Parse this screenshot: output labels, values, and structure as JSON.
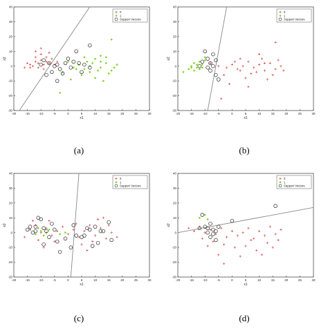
{
  "colors": {
    "class0": "#d9534f",
    "class1": "#7ed321",
    "sv": "#222222",
    "line": "#888888"
  },
  "chart_data": [
    {
      "type": "scatter",
      "caption": "(a)",
      "xlabel": "x1",
      "ylabel": "x2",
      "xlim": [
        -20,
        30
      ],
      "ylim": [
        -30,
        40
      ],
      "xticks": [
        -20,
        -15,
        -10,
        -5,
        0,
        5,
        10,
        15,
        20,
        25,
        30
      ],
      "yticks": [
        -30,
        -20,
        -10,
        0,
        10,
        20,
        30,
        40
      ],
      "legend": {
        "position": "top-right",
        "entries": [
          "0",
          "1",
          "Support Vectors"
        ]
      },
      "boundary": [
        [
          -18,
          -30
        ],
        [
          8,
          40
        ]
      ],
      "series": [
        {
          "name": "0",
          "marker": "plus",
          "points": [
            [
              -15,
              2
            ],
            [
              -14,
              1
            ],
            [
              -12,
              3
            ],
            [
              -11,
              2
            ],
            [
              -10,
              4
            ],
            [
              -9,
              1
            ],
            [
              -8,
              3
            ],
            [
              -12,
              6
            ],
            [
              -10,
              8
            ],
            [
              -7,
              2
            ],
            [
              -13,
              0
            ],
            [
              -11,
              -1
            ],
            [
              -9,
              -2
            ],
            [
              -8,
              6
            ],
            [
              -6,
              5
            ],
            [
              -5,
              1
            ],
            [
              -14,
              -1
            ],
            [
              -10,
              12
            ],
            [
              -7,
              9
            ],
            [
              -12,
              10
            ],
            [
              -4,
              3
            ],
            [
              -16,
              -1
            ]
          ]
        },
        {
          "name": "1",
          "marker": "dot",
          "points": [
            [
              0,
              3
            ],
            [
              2,
              -1
            ],
            [
              4,
              1
            ],
            [
              6,
              -2
            ],
            [
              8,
              0
            ],
            [
              10,
              5
            ],
            [
              12,
              -1
            ],
            [
              14,
              2
            ],
            [
              16,
              -3
            ],
            [
              18,
              1
            ],
            [
              5,
              -6
            ],
            [
              8,
              -4
            ],
            [
              12,
              3
            ],
            [
              15,
              -5
            ],
            [
              16,
              18
            ],
            [
              3,
              -2
            ],
            [
              10,
              -8
            ],
            [
              14,
              6
            ],
            [
              7,
              3
            ],
            [
              11,
              -3
            ],
            [
              -3,
              -18
            ],
            [
              13,
              -10
            ],
            [
              9,
              2
            ],
            [
              17,
              -1
            ],
            [
              -2,
              -4
            ],
            [
              6,
              6
            ],
            [
              1,
              -9
            ],
            [
              12,
              7
            ]
          ]
        }
      ],
      "support_vectors": [
        [
          -9,
          4
        ],
        [
          -7,
          2
        ],
        [
          -5,
          0
        ],
        [
          -3,
          -2
        ],
        [
          -2,
          -5
        ],
        [
          -6,
          -4
        ],
        [
          -1,
          2
        ],
        [
          0,
          5
        ],
        [
          2,
          3
        ],
        [
          4,
          2
        ],
        [
          5,
          -4
        ],
        [
          6,
          1
        ],
        [
          8,
          -1
        ],
        [
          -4,
          -10
        ],
        [
          -8,
          -6
        ],
        [
          -10,
          1
        ],
        [
          3,
          10
        ],
        [
          8,
          14
        ],
        [
          -4,
          1
        ],
        [
          1,
          -1
        ]
      ]
    },
    {
      "type": "scatter",
      "caption": "(b)",
      "xlabel": "x1",
      "ylabel": "x2",
      "xlim": [
        -20,
        30
      ],
      "ylim": [
        -30,
        40
      ],
      "xticks": [
        -20,
        -15,
        -10,
        -5,
        0,
        5,
        10,
        15,
        20,
        25,
        30
      ],
      "yticks": [
        -30,
        -20,
        -10,
        0,
        10,
        20,
        30,
        40
      ],
      "legend": {
        "position": "top-right",
        "entries": [
          "0",
          "1",
          "Support Vectors"
        ]
      },
      "boundary": [
        [
          -9,
          -30
        ],
        [
          -2,
          40
        ]
      ],
      "series": [
        {
          "name": "0",
          "marker": "plus",
          "points": [
            [
              -8,
              2
            ],
            [
              -5,
              0
            ],
            [
              -2,
              -1
            ],
            [
              0,
              1
            ],
            [
              2,
              -2
            ],
            [
              4,
              0
            ],
            [
              6,
              3
            ],
            [
              8,
              -1
            ],
            [
              10,
              1
            ],
            [
              12,
              -3
            ],
            [
              14,
              2
            ],
            [
              16,
              -2
            ],
            [
              18,
              0
            ],
            [
              3,
              5
            ],
            [
              7,
              -5
            ],
            [
              11,
              5
            ],
            [
              15,
              -6
            ],
            [
              -3,
              -6
            ],
            [
              5,
              -8
            ],
            [
              9,
              -4
            ],
            [
              13,
              -9
            ],
            [
              17,
              4
            ],
            [
              1,
              3
            ],
            [
              -1,
              -12
            ],
            [
              6,
              -14
            ],
            [
              16,
              16
            ],
            [
              10,
              8
            ],
            [
              -4,
              -22
            ],
            [
              19,
              -3
            ],
            [
              12,
              2
            ],
            [
              3,
              -3
            ]
          ]
        },
        {
          "name": "1",
          "marker": "dot",
          "points": [
            [
              -18,
              -4
            ],
            [
              -16,
              -2
            ],
            [
              -15,
              0
            ],
            [
              -14,
              2
            ],
            [
              -13,
              -1
            ],
            [
              -12,
              3
            ],
            [
              -11,
              1
            ],
            [
              -10,
              4
            ],
            [
              -12,
              -2
            ],
            [
              -14,
              -3
            ],
            [
              -10,
              6
            ],
            [
              -11,
              -1
            ],
            [
              -13,
              1
            ],
            [
              -15,
              -1
            ]
          ]
        }
      ],
      "support_vectors": [
        [
          -10,
          10
        ],
        [
          -9,
          5
        ],
        [
          -8,
          2
        ],
        [
          -7,
          0
        ],
        [
          -8,
          -3
        ],
        [
          -6,
          -6
        ],
        [
          -9,
          -1
        ],
        [
          -12,
          0
        ],
        [
          -11,
          3
        ],
        [
          -6,
          4
        ],
        [
          -5,
          -9
        ],
        [
          -7,
          8
        ]
      ]
    },
    {
      "type": "scatter",
      "caption": "(c)",
      "xlabel": "x1",
      "ylabel": "x2",
      "xlim": [
        -20,
        30
      ],
      "ylim": [
        -30,
        40
      ],
      "xticks": [
        -20,
        -15,
        -10,
        -5,
        0,
        5,
        10,
        15,
        20,
        25,
        30
      ],
      "yticks": [
        -30,
        -20,
        -10,
        0,
        10,
        20,
        30,
        40
      ],
      "legend": {
        "position": "top-right",
        "entries": [
          "0",
          "1",
          "Support Vectors"
        ]
      },
      "boundary": [
        [
          1,
          -30
        ],
        [
          4,
          40
        ]
      ],
      "series": [
        {
          "name": "0",
          "marker": "plus",
          "points": [
            [
              -14,
              2
            ],
            [
              -12,
              5
            ],
            [
              -10,
              0
            ],
            [
              -8,
              3
            ],
            [
              -6,
              -2
            ],
            [
              -4,
              1
            ],
            [
              -2,
              4
            ],
            [
              0,
              -1
            ],
            [
              2,
              2
            ],
            [
              4,
              -3
            ],
            [
              6,
              1
            ],
            [
              8,
              5
            ],
            [
              10,
              -2
            ],
            [
              12,
              3
            ],
            [
              14,
              -4
            ],
            [
              16,
              0
            ],
            [
              -11,
              -5
            ],
            [
              -7,
              8
            ],
            [
              5,
              -8
            ],
            [
              13,
              10
            ],
            [
              -9,
              -10
            ],
            [
              9,
              -6
            ],
            [
              15,
              5
            ],
            [
              -13,
              8
            ],
            [
              3,
              6
            ],
            [
              -16,
              -3
            ],
            [
              18,
              -3
            ],
            [
              7,
              -12
            ],
            [
              11,
              9
            ],
            [
              -5,
              -6
            ]
          ]
        },
        {
          "name": "1",
          "marker": "dot",
          "points": [
            [
              -10,
              1
            ],
            [
              -9,
              -2
            ],
            [
              -8,
              0
            ],
            [
              -11,
              3
            ],
            [
              -7,
              2
            ],
            [
              -12,
              -1
            ],
            [
              -3,
              -1
            ],
            [
              -1,
              0
            ]
          ]
        }
      ],
      "support_vectors": [
        [
          -14,
          4
        ],
        [
          -13,
          0
        ],
        [
          -12,
          4
        ],
        [
          -11,
          10
        ],
        [
          -10,
          9
        ],
        [
          -9,
          3
        ],
        [
          -8,
          1
        ],
        [
          -7,
          -3
        ],
        [
          -6,
          6
        ],
        [
          -5,
          2
        ],
        [
          -4,
          -6
        ],
        [
          -3,
          -13
        ],
        [
          -1,
          -4
        ],
        [
          1,
          -10
        ],
        [
          3,
          -2
        ],
        [
          5,
          -3
        ],
        [
          6,
          -2
        ],
        [
          8,
          2
        ],
        [
          9,
          -9
        ],
        [
          10,
          4
        ],
        [
          12,
          1
        ],
        [
          15,
          7
        ],
        [
          16,
          -5
        ],
        [
          -9,
          -8
        ],
        [
          -15,
          2
        ],
        [
          -12,
          1
        ],
        [
          2,
          5
        ],
        [
          11,
          -7
        ],
        [
          13,
          1
        ],
        [
          7,
          3
        ]
      ]
    },
    {
      "type": "scatter",
      "caption": "(d)",
      "xlabel": "x1",
      "ylabel": "x2",
      "xlim": [
        -20,
        30
      ],
      "ylim": [
        -30,
        40
      ],
      "xticks": [
        -20,
        -15,
        -10,
        -5,
        0,
        5,
        10,
        15,
        20,
        25,
        30
      ],
      "yticks": [
        -30,
        -20,
        -10,
        0,
        10,
        20,
        30,
        40
      ],
      "legend": {
        "position": "top-right",
        "entries": [
          "0",
          "1",
          "Support Vectors"
        ]
      },
      "boundary": [
        [
          -20,
          0
        ],
        [
          30,
          17
        ]
      ],
      "series": [
        {
          "name": "0",
          "marker": "plus",
          "points": [
            [
              -16,
              3
            ],
            [
              -14,
              1
            ],
            [
              -12,
              4
            ],
            [
              -10,
              0
            ],
            [
              -8,
              2
            ],
            [
              -6,
              -1
            ],
            [
              -4,
              3
            ],
            [
              -2,
              -3
            ],
            [
              0,
              1
            ],
            [
              2,
              -2
            ],
            [
              4,
              0
            ],
            [
              6,
              3
            ],
            [
              8,
              -4
            ],
            [
              10,
              1
            ],
            [
              12,
              -2
            ],
            [
              14,
              4
            ],
            [
              16,
              -1
            ],
            [
              18,
              2
            ],
            [
              -11,
              -4
            ],
            [
              -7,
              -6
            ],
            [
              -3,
              -8
            ],
            [
              1,
              -10
            ],
            [
              5,
              -9
            ],
            [
              9,
              -12
            ],
            [
              13,
              -7
            ],
            [
              17,
              -5
            ],
            [
              -5,
              -15
            ],
            [
              3,
              -16
            ],
            [
              11,
              -15
            ],
            [
              -9,
              -9
            ],
            [
              7,
              -5
            ],
            [
              15,
              -10
            ],
            [
              -3,
              -21
            ]
          ]
        },
        {
          "name": "1",
          "marker": "dot",
          "points": [
            [
              -12,
              10
            ],
            [
              -10,
              12
            ],
            [
              -9,
              9
            ]
          ]
        }
      ],
      "support_vectors": [
        [
          -11,
          12
        ],
        [
          -12,
          3
        ],
        [
          -10,
          4
        ],
        [
          -9,
          3
        ],
        [
          -8,
          6
        ],
        [
          -7,
          2
        ],
        [
          -6,
          1
        ],
        [
          -7,
          -1
        ],
        [
          -5,
          4
        ],
        [
          -6,
          -5
        ],
        [
          -8,
          -3
        ],
        [
          0,
          8
        ],
        [
          16,
          18
        ],
        [
          -9,
          0
        ]
      ]
    }
  ]
}
